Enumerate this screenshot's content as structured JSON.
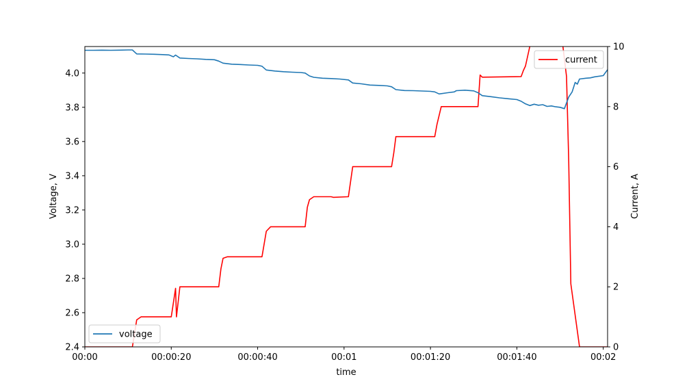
{
  "chart_data": {
    "type": "line",
    "xlabel": "time",
    "ylabel_left": "Voltage, V",
    "ylabel_right": "Current, A",
    "x_range_seconds": [
      0,
      121
    ],
    "x_ticks": [
      {
        "t": 0,
        "label": "00:00"
      },
      {
        "t": 20,
        "label": "00:00:20"
      },
      {
        "t": 40,
        "label": "00:00:40"
      },
      {
        "t": 60,
        "label": "00:01"
      },
      {
        "t": 80,
        "label": "00:01:20"
      },
      {
        "t": 100,
        "label": "00:01:40"
      },
      {
        "t": 120,
        "label": "00:02"
      }
    ],
    "ylim_left": [
      2.4,
      4.155
    ],
    "yticks_left": [
      "2.4",
      "2.6",
      "2.8",
      "3.0",
      "3.2",
      "3.4",
      "3.6",
      "3.8",
      "4.0"
    ],
    "ylim_right": [
      0,
      10
    ],
    "yticks_right": [
      "0",
      "2",
      "4",
      "6",
      "8",
      "10"
    ],
    "grid": false,
    "legend_left": {
      "placement": "lower-left",
      "entries": [
        "voltage"
      ]
    },
    "legend_right": {
      "placement": "upper-right",
      "entries": [
        "current"
      ]
    },
    "series": [
      {
        "name": "voltage",
        "axis": "left",
        "color": "#1f77b4",
        "points": [
          [
            0,
            4.133
          ],
          [
            2,
            4.133
          ],
          [
            4,
            4.134
          ],
          [
            6,
            4.133
          ],
          [
            8,
            4.134
          ],
          [
            10,
            4.135
          ],
          [
            11,
            4.135
          ],
          [
            12,
            4.112
          ],
          [
            14,
            4.111
          ],
          [
            16,
            4.11
          ],
          [
            18,
            4.108
          ],
          [
            19.5,
            4.106
          ],
          [
            20.5,
            4.095
          ],
          [
            21,
            4.105
          ],
          [
            22,
            4.088
          ],
          [
            24,
            4.085
          ],
          [
            26,
            4.083
          ],
          [
            28,
            4.08
          ],
          [
            30,
            4.078
          ],
          [
            31,
            4.07
          ],
          [
            32,
            4.058
          ],
          [
            34,
            4.052
          ],
          [
            36,
            4.05
          ],
          [
            38,
            4.047
          ],
          [
            40,
            4.045
          ],
          [
            41,
            4.04
          ],
          [
            42,
            4.018
          ],
          [
            44,
            4.012
          ],
          [
            46,
            4.008
          ],
          [
            48,
            4.005
          ],
          [
            50,
            4.003
          ],
          [
            51,
            4.0
          ],
          [
            52,
            3.983
          ],
          [
            53,
            3.975
          ],
          [
            55,
            3.97
          ],
          [
            57,
            3.968
          ],
          [
            59,
            3.965
          ],
          [
            61,
            3.96
          ],
          [
            62,
            3.942
          ],
          [
            64,
            3.937
          ],
          [
            66,
            3.93
          ],
          [
            68,
            3.928
          ],
          [
            70,
            3.925
          ],
          [
            71,
            3.92
          ],
          [
            72,
            3.903
          ],
          [
            74,
            3.898
          ],
          [
            76,
            3.897
          ],
          [
            78,
            3.895
          ],
          [
            80,
            3.893
          ],
          [
            81,
            3.89
          ],
          [
            82,
            3.878
          ],
          [
            84,
            3.885
          ],
          [
            85.5,
            3.89
          ],
          [
            86,
            3.897
          ],
          [
            88,
            3.9
          ],
          [
            90,
            3.896
          ],
          [
            91,
            3.885
          ],
          [
            92,
            3.868
          ],
          [
            94,
            3.862
          ],
          [
            96,
            3.855
          ],
          [
            98,
            3.85
          ],
          [
            100,
            3.845
          ],
          [
            101,
            3.835
          ],
          [
            102,
            3.82
          ],
          [
            103,
            3.81
          ],
          [
            104,
            3.818
          ],
          [
            105,
            3.812
          ],
          [
            106,
            3.815
          ],
          [
            107,
            3.805
          ],
          [
            108,
            3.808
          ],
          [
            109,
            3.803
          ],
          [
            110,
            3.8
          ],
          [
            111,
            3.792
          ],
          [
            112,
            3.86
          ],
          [
            112.8,
            3.89
          ],
          [
            113.5,
            3.945
          ],
          [
            114,
            3.935
          ],
          [
            114.5,
            3.965
          ],
          [
            116,
            3.97
          ],
          [
            117,
            3.972
          ],
          [
            118,
            3.978
          ],
          [
            120,
            3.985
          ],
          [
            121,
            4.02
          ]
        ]
      },
      {
        "name": "current",
        "axis": "right",
        "color": "#ff0000",
        "points": [
          [
            0,
            0
          ],
          [
            11,
            0
          ],
          [
            12,
            0.9
          ],
          [
            13,
            1.0
          ],
          [
            20,
            1.0
          ],
          [
            21,
            1.95
          ],
          [
            21.2,
            1.0
          ],
          [
            22,
            2.0
          ],
          [
            31,
            2.0
          ],
          [
            31.5,
            2.6
          ],
          [
            32,
            2.95
          ],
          [
            33,
            3.0
          ],
          [
            41,
            3.0
          ],
          [
            42,
            3.85
          ],
          [
            43,
            4.0
          ],
          [
            51,
            4.0
          ],
          [
            51.5,
            4.65
          ],
          [
            52,
            4.9
          ],
          [
            53,
            5.0
          ],
          [
            57,
            5.0
          ],
          [
            57.5,
            4.98
          ],
          [
            61,
            5.0
          ],
          [
            62,
            6.0
          ],
          [
            71,
            6.0
          ],
          [
            71.5,
            6.45
          ],
          [
            72,
            7.0
          ],
          [
            81,
            7.0
          ],
          [
            81.5,
            7.4
          ],
          [
            82.5,
            8.0
          ],
          [
            91,
            8.0
          ],
          [
            91.5,
            9.05
          ],
          [
            92,
            8.98
          ],
          [
            101,
            9.0
          ],
          [
            101.5,
            9.2
          ],
          [
            102,
            9.35
          ],
          [
            103,
            10.0
          ],
          [
            103.5,
            10.2
          ],
          [
            110.5,
            10.2
          ],
          [
            111.5,
            9.0
          ],
          [
            112,
            6.2
          ],
          [
            112.5,
            2.1
          ],
          [
            114.5,
            0
          ],
          [
            120,
            0
          ],
          [
            121,
            0
          ]
        ]
      }
    ]
  }
}
